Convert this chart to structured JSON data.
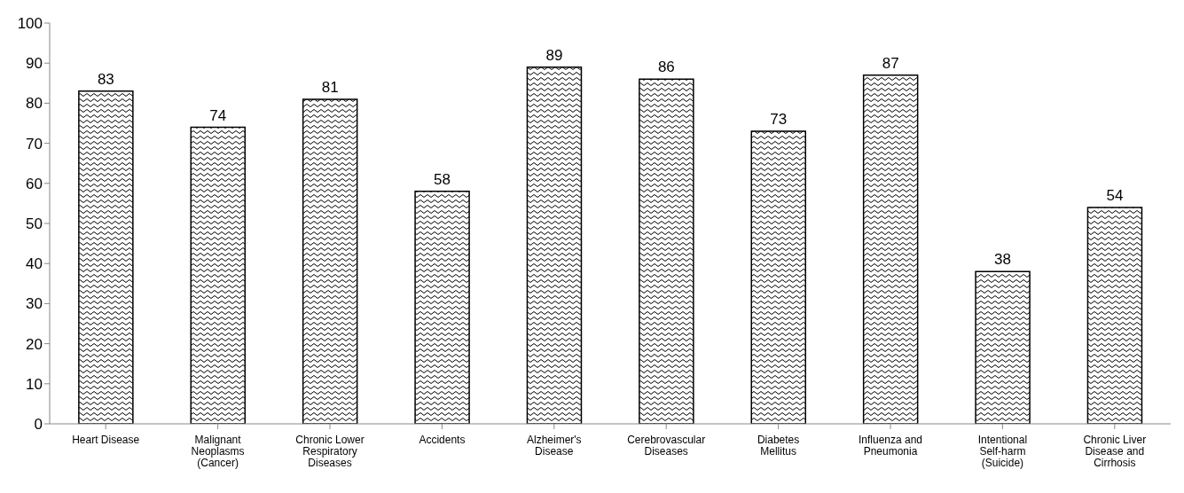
{
  "chart_data": {
    "type": "bar",
    "categories": [
      "Heart Disease",
      "Malignant Neoplasms (Cancer)",
      "Chronic Lower Respiratory Diseases",
      "Accidents",
      "Alzheimer's Disease",
      "Cerebrovascular Diseases",
      "Diabetes Mellitus",
      "Influenza and Pneumonia",
      "Intentional Self-harm (Suicide)",
      "Chronic Liver Disease and Cirrhosis"
    ],
    "values": [
      83,
      74,
      81,
      58,
      89,
      86,
      73,
      87,
      38,
      54
    ],
    "color": "#000000",
    "ylim": [
      0,
      100
    ],
    "yticks": [
      0,
      10,
      20,
      30,
      40,
      50,
      60,
      70,
      80,
      90,
      100
    ],
    "data_labels": true,
    "grid": false,
    "legend": false
  }
}
